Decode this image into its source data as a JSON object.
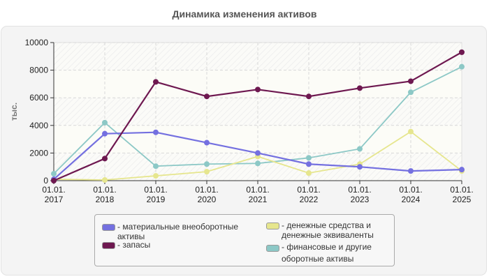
{
  "title": "Динамика изменения активов",
  "chart_data": {
    "type": "line",
    "title": "Динамика изменения активов",
    "xlabel": "",
    "ylabel": "тыс.",
    "ylim": [
      0,
      10000
    ],
    "yticks": [
      "0",
      "2000",
      "4000",
      "6000",
      "8000",
      "10000"
    ],
    "categories": [
      "01.01.\n2017",
      "01.01.\n2018",
      "01.01.\n2019",
      "01.01.\n2020",
      "01.01.\n2021",
      "01.01.\n2022",
      "01.01.\n2023",
      "01.01.\n2024",
      "01.01.\n2025"
    ],
    "grid": true,
    "legend_position": "bottom",
    "series": [
      {
        "name": "материальные внеоборотные активы",
        "color": "#7470e0",
        "values": [
          100,
          3400,
          3500,
          2750,
          2000,
          1200,
          1000,
          700,
          800
        ]
      },
      {
        "name": "запасы",
        "color": "#6e1850",
        "values": [
          0,
          1600,
          7150,
          6100,
          6600,
          6100,
          6700,
          7200,
          9300
        ]
      },
      {
        "name": "денежные средства и денежные эквиваленты",
        "color": "#e6e68e",
        "values": [
          100,
          50,
          350,
          650,
          1750,
          550,
          1200,
          3550,
          700
        ]
      },
      {
        "name": "финансовые и другие оборотные активы",
        "color": "#8cc8c6",
        "values": [
          500,
          4200,
          1050,
          1200,
          1250,
          1650,
          2300,
          6400,
          8250
        ]
      }
    ]
  },
  "legend": {
    "items": [
      {
        "label": "- материальные внеоборотные\nактивы",
        "color": "#7470e0"
      },
      {
        "label": "- запасы",
        "color": "#6e1850"
      },
      {
        "label": "- денежные средства и\nденежные эквиваленты",
        "color": "#e6e68e"
      },
      {
        "label": "- финансовые и другие\nоборотные активы",
        "color": "#8cc8c6"
      }
    ]
  }
}
